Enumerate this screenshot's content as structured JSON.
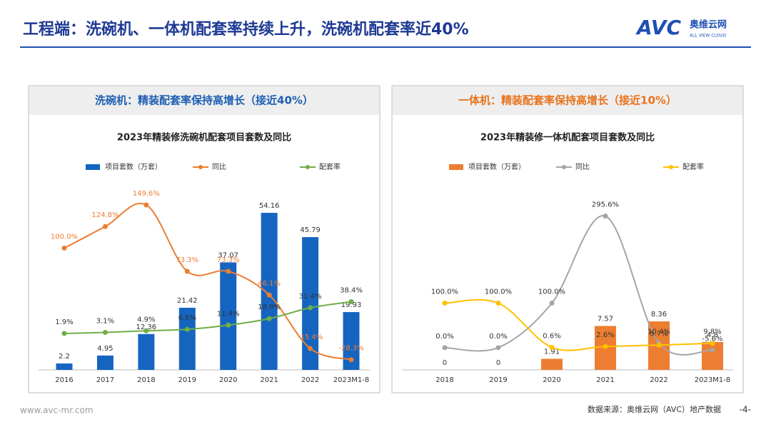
{
  "header": {
    "title": "工程端：洗碗机、一体机配套率持续上升，洗碗机配套率近40%",
    "logo": "AVC",
    "logo_cn": "奥维云网",
    "logo_en": "ALL VIEW CLOUD"
  },
  "chart_data": [
    {
      "type": "combo",
      "subtitle": "洗碗机：精装配套率保持高增长（接近40%）",
      "subtitle_color": "#1f5fb4",
      "title": "2023年精装修洗碗机配套项目套数及同比",
      "categories": [
        "2016",
        "2017",
        "2018",
        "2019",
        "2020",
        "2021",
        "2022",
        "2023M1-8"
      ],
      "ylim": [
        0,
        66
      ],
      "y2lim": [
        -40,
        180
      ],
      "series": [
        {
          "name": "项目套数（万套）",
          "type": "bar",
          "color": "#1565c0",
          "values": [
            2.2,
            4.95,
            12.36,
            21.42,
            37.07,
            54.16,
            45.79,
            19.93
          ]
        },
        {
          "name": "同比",
          "type": "line",
          "axis": "y2",
          "color": "#ed7d31",
          "values": [
            100.0,
            124.8,
            149.6,
            73.3,
            73.3,
            46.1,
            -15.4,
            -28.3
          ],
          "value_labels": [
            "100.0%",
            "124.8%",
            "149.6%",
            "73.3%",
            "73.3%",
            "46.1%",
            "-15.4%",
            "-28.3%"
          ]
        },
        {
          "name": "配套率",
          "type": "line",
          "axis": "y2",
          "color": "#70ad47",
          "values": [
            1.9,
            3.1,
            4.9,
            6.6,
            11.4,
            18.9,
            31.4,
            38.4
          ],
          "value_labels": [
            "1.9%",
            "3.1%",
            "4.9%",
            "6.6%",
            "11.4%",
            "18.9%",
            "31.4%",
            "38.4%"
          ]
        }
      ]
    },
    {
      "type": "combo",
      "subtitle": "一体机：精装配套率保持高增长（接近10%）",
      "subtitle_color": "#e8731c",
      "title": "2023年精装修一体机配套项目套数及同比",
      "categories": [
        "2018",
        "2019",
        "2020",
        "2021",
        "2022",
        "2023M1-8"
      ],
      "ylim": [
        0,
        33
      ],
      "y2lim": [
        -50,
        380
      ],
      "series": [
        {
          "name": "项目套数（万套）",
          "type": "bar",
          "color": "#ed7d31",
          "values": [
            0,
            0,
            1.91,
            7.57,
            8.36,
            4.8
          ]
        },
        {
          "name": "同比",
          "type": "line",
          "axis": "y2",
          "color": "#a5a5a5",
          "values": [
            0.0,
            0.0,
            100.0,
            295.6,
            10.4,
            -5.6
          ],
          "value_labels": [
            "0.0%",
            "0.0%",
            "100.0%",
            "295.6%",
            "10.4%",
            "-5.6%"
          ]
        },
        {
          "name": "配套率",
          "type": "line",
          "axis": "y2",
          "color": "#ffc000",
          "values": [
            100.0,
            100.0,
            0.6,
            2.6,
            5.7,
            9.8
          ],
          "value_labels": [
            "100.0%",
            "100.0%",
            "0.6%",
            "2.6%",
            "5.7%",
            "9.8%"
          ]
        }
      ]
    }
  ],
  "footer": {
    "url": "www.avc-mr.com",
    "source": "数据来源：奥维云网（AVC）地产数据",
    "page": "-4-"
  }
}
